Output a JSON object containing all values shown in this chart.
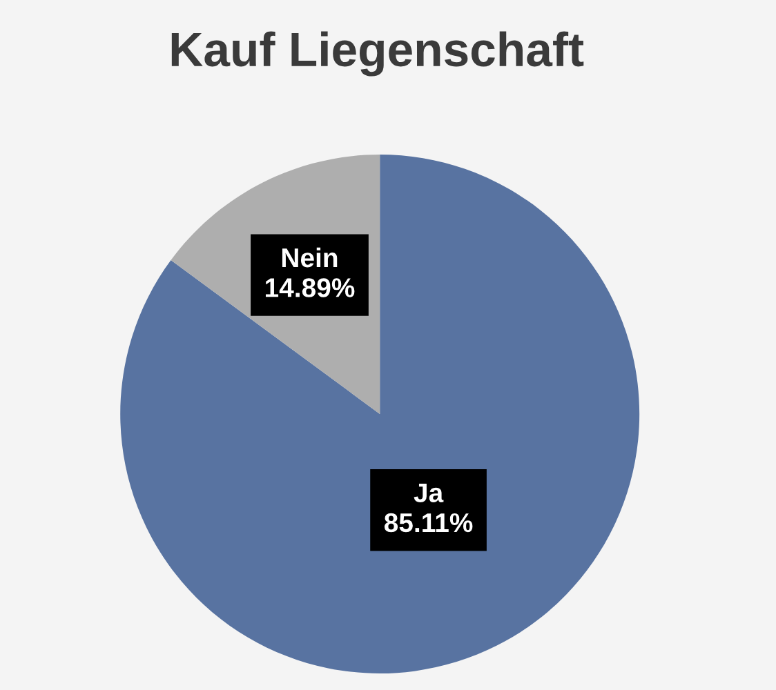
{
  "chart_data": {
    "type": "pie",
    "title": "Kauf Liegenschaft",
    "categories": [
      "Ja",
      "Nein"
    ],
    "values": [
      85.11,
      14.89
    ],
    "value_labels": [
      "85.11%",
      "14.89%"
    ],
    "colors": [
      "#5873a1",
      "#aeaeae"
    ],
    "legend": false
  }
}
